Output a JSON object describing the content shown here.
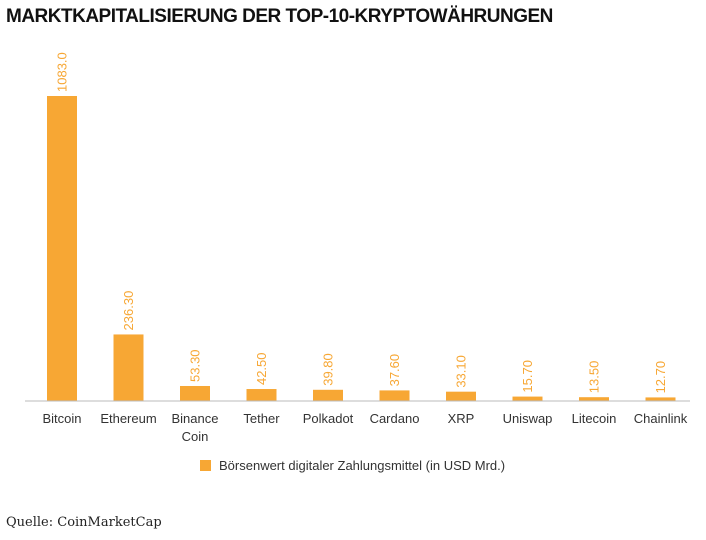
{
  "chart_data": {
    "type": "bar",
    "title": "MARKTKAPITALISIERUNG DER TOP-10-KRYPTOWÄHRUNGEN",
    "categories": [
      [
        "Bitcoin"
      ],
      [
        "Ethereum"
      ],
      [
        "Binance",
        "Coin"
      ],
      [
        "Tether"
      ],
      [
        "Polkadot"
      ],
      [
        "Cardano"
      ],
      [
        "XRP"
      ],
      [
        "Uniswap"
      ],
      [
        "Litecoin"
      ],
      [
        "Chainlink"
      ]
    ],
    "series": [
      {
        "name": "Börsenwert digitaler Zahlungsmittel (in USD Mrd.)",
        "values": [
          1083.0,
          236.3,
          53.3,
          42.5,
          39.8,
          37.6,
          33.1,
          15.7,
          13.5,
          12.7
        ],
        "labels": [
          "1083.0",
          "236.30",
          "53.30",
          "42.50",
          "39.80",
          "37.60",
          "33.10",
          "15.70",
          "13.50",
          "12.70"
        ],
        "color": "#f7a734"
      }
    ],
    "ylim": [
      0,
      1083
    ],
    "grid": false,
    "legend_position": "bottom-center"
  },
  "source": "Quelle: CoinMarketCap"
}
